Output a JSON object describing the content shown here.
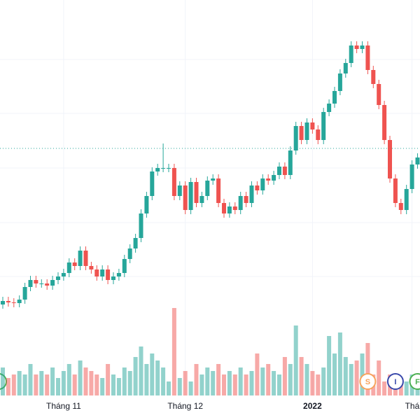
{
  "chart_data": {
    "type": "candlestick",
    "categories": [
      null,
      null,
      null,
      null,
      null,
      null,
      null,
      null,
      null,
      null,
      null,
      "Tháng 11",
      null,
      null,
      null,
      null,
      null,
      null,
      null,
      null,
      null,
      null,
      null,
      null,
      null,
      null,
      null,
      null,
      null,
      null,
      null,
      null,
      null,
      "Tháng 12",
      null,
      null,
      null,
      null,
      null,
      null,
      null,
      null,
      null,
      null,
      null,
      null,
      null,
      null,
      null,
      null,
      null,
      null,
      null,
      null,
      null,
      null,
      "2022",
      null,
      null,
      null,
      null,
      null,
      null,
      null,
      null,
      null,
      null,
      null,
      null,
      null,
      null,
      null,
      null,
      null,
      "Tháng",
      null
    ],
    "open": [
      165,
      170,
      168,
      167,
      172,
      190,
      200,
      195,
      195,
      192,
      200,
      205,
      210,
      225,
      220,
      242,
      220,
      215,
      205,
      215,
      200,
      205,
      210,
      230,
      245,
      260,
      295,
      320,
      355,
      360,
      360,
      360,
      320,
      335,
      300,
      340,
      310,
      320,
      342,
      345,
      310,
      295,
      305,
      300,
      320,
      310,
      335,
      328,
      345,
      342,
      350,
      362,
      350,
      385,
      420,
      400,
      425,
      415,
      400,
      440,
      452,
      470,
      495,
      510,
      535,
      530,
      535,
      500,
      480,
      450,
      400,
      345,
      310,
      300,
      330,
      365
    ],
    "high": [
      176,
      176,
      174,
      178,
      196,
      206,
      206,
      201,
      201,
      206,
      211,
      216,
      231,
      231,
      248,
      248,
      226,
      221,
      221,
      221,
      211,
      216,
      236,
      251,
      266,
      301,
      326,
      361,
      366,
      395,
      366,
      366,
      341,
      341,
      346,
      346,
      326,
      348,
      351,
      351,
      316,
      311,
      311,
      326,
      326,
      341,
      341,
      351,
      351,
      356,
      368,
      368,
      391,
      426,
      426,
      431,
      431,
      421,
      446,
      458,
      476,
      501,
      516,
      541,
      541,
      541,
      541,
      506,
      486,
      456,
      406,
      351,
      316,
      336,
      371,
      381
    ],
    "low": [
      159,
      162,
      161,
      161,
      166,
      184,
      189,
      189,
      186,
      186,
      194,
      199,
      204,
      214,
      214,
      214,
      209,
      199,
      199,
      194,
      194,
      199,
      204,
      224,
      239,
      254,
      289,
      314,
      349,
      354,
      354,
      314,
      314,
      294,
      294,
      304,
      304,
      314,
      336,
      304,
      289,
      289,
      294,
      294,
      304,
      304,
      322,
      322,
      336,
      336,
      344,
      344,
      344,
      379,
      394,
      394,
      409,
      394,
      394,
      434,
      446,
      464,
      489,
      504,
      524,
      524,
      494,
      474,
      444,
      394,
      339,
      304,
      294,
      294,
      324,
      359
    ],
    "close": [
      170,
      168,
      167,
      172,
      190,
      200,
      195,
      195,
      192,
      200,
      205,
      210,
      225,
      220,
      242,
      220,
      215,
      205,
      215,
      200,
      205,
      210,
      230,
      245,
      260,
      295,
      320,
      355,
      360,
      360,
      360,
      320,
      335,
      300,
      340,
      310,
      320,
      342,
      345,
      310,
      295,
      305,
      300,
      320,
      310,
      335,
      328,
      345,
      342,
      350,
      362,
      350,
      385,
      420,
      400,
      425,
      415,
      400,
      440,
      452,
      470,
      495,
      510,
      535,
      530,
      535,
      500,
      480,
      450,
      400,
      345,
      310,
      300,
      330,
      365,
      375
    ],
    "volume": [
      40,
      25,
      30,
      35,
      30,
      45,
      30,
      35,
      30,
      40,
      25,
      35,
      45,
      30,
      50,
      40,
      35,
      30,
      25,
      45,
      30,
      25,
      40,
      35,
      55,
      70,
      45,
      60,
      50,
      40,
      20,
      125,
      25,
      35,
      20,
      45,
      30,
      40,
      35,
      45,
      30,
      35,
      30,
      40,
      30,
      35,
      60,
      40,
      45,
      35,
      30,
      55,
      45,
      100,
      55,
      45,
      35,
      30,
      40,
      85,
      60,
      90,
      55,
      45,
      50,
      60,
      75,
      30,
      50,
      20,
      30,
      20,
      25,
      20,
      30,
      25
    ],
    "up_color": "#26a69a",
    "down_color": "#ef5350",
    "ylim": [
      150,
      600
    ],
    "yticks": [
      205,
      282,
      360,
      438,
      515
    ],
    "grid": true,
    "price_line": 388,
    "events": [
      {
        "index": 66,
        "label": "S",
        "color": "#f7a35c"
      },
      {
        "index": 71,
        "label": "I",
        "color": "#3949ab"
      },
      {
        "index": 75,
        "label": "F",
        "color": "#4caf50"
      }
    ]
  }
}
